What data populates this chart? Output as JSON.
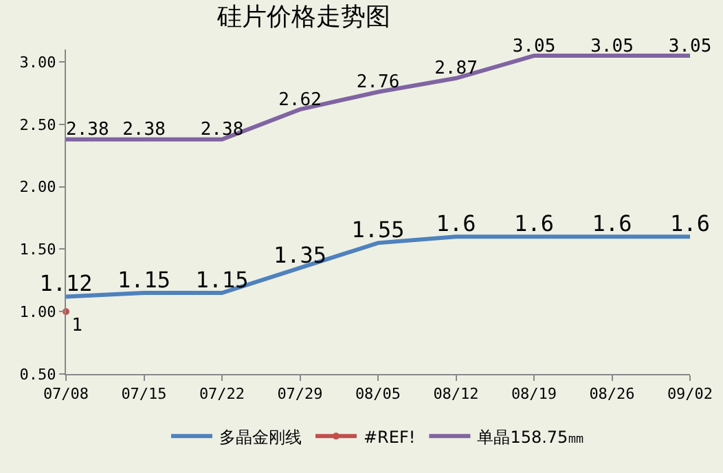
{
  "chart_data": {
    "type": "line",
    "title": "硅片价格走势图",
    "categories": [
      "07/08",
      "07/15",
      "07/22",
      "07/29",
      "08/05",
      "08/12",
      "08/19",
      "08/26",
      "09/02"
    ],
    "series": [
      {
        "name": "多晶金刚线",
        "color": "#4f81bd",
        "values": [
          1.12,
          1.15,
          1.15,
          1.35,
          1.55,
          1.6,
          1.6,
          1.6,
          1.6
        ]
      },
      {
        "name": "#REF!",
        "color": "#c0504d",
        "marker": "circle",
        "values": [
          1,
          null,
          null,
          null,
          null,
          null,
          null,
          null,
          null
        ]
      },
      {
        "name": "单晶158.75㎜",
        "color": "#8064a2",
        "values": [
          2.38,
          2.38,
          2.38,
          2.62,
          2.76,
          2.87,
          3.05,
          3.05,
          3.05
        ]
      }
    ],
    "ylim": [
      0.5,
      3.1
    ],
    "yticks": [
      {
        "value": 0.5,
        "label": "0.50"
      },
      {
        "value": 1,
        "label": "1.00"
      },
      {
        "value": 1.5,
        "label": "1.50"
      },
      {
        "value": 2,
        "label": "2.00"
      },
      {
        "value": 2.5,
        "label": "2.50"
      },
      {
        "value": 3,
        "label": "3.00"
      }
    ],
    "grid": false,
    "legend": "bottom",
    "marker": "none",
    "line_style": "solid",
    "data_labels": true
  }
}
